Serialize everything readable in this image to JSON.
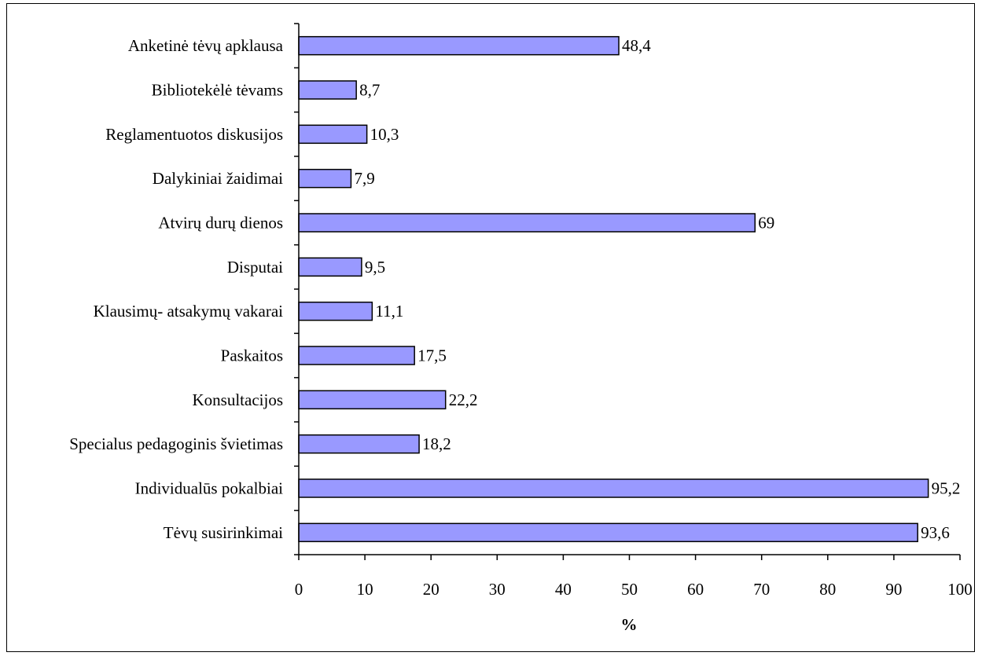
{
  "chart_data": {
    "type": "bar",
    "orientation": "horizontal",
    "categories": [
      "Anketinė tėvų apklausa",
      "Bibliotekėlė tėvams",
      "Reglamentuotos diskusijos",
      "Dalykiniai žaidimai",
      "Atvirų durų dienos",
      "Disputai",
      "Klausimų- atsakymų vakarai",
      "Paskaitos",
      "Konsultacijos",
      "Specialus pedagoginis švietimas",
      "Individualūs pokalbiai",
      "Tėvų susirinkimai"
    ],
    "values": [
      48.4,
      8.7,
      10.3,
      7.9,
      69,
      9.5,
      11.1,
      17.5,
      22.2,
      18.2,
      95.2,
      93.6
    ],
    "value_labels": [
      "48,4",
      "8,7",
      "10,3",
      "7,9",
      "69",
      "9,5",
      "11,1",
      "17,5",
      "22,2",
      "18,2",
      "95,2",
      "93,6"
    ],
    "xlabel": "%",
    "ylabel": "",
    "title": "",
    "xlim": [
      0,
      100
    ],
    "xticks": [
      "0",
      "10",
      "20",
      "30",
      "40",
      "50",
      "60",
      "70",
      "80",
      "90",
      "100"
    ],
    "grid": false,
    "legend": "none",
    "bar_color": "#9999ff",
    "bar_edge_color": "#000000"
  }
}
